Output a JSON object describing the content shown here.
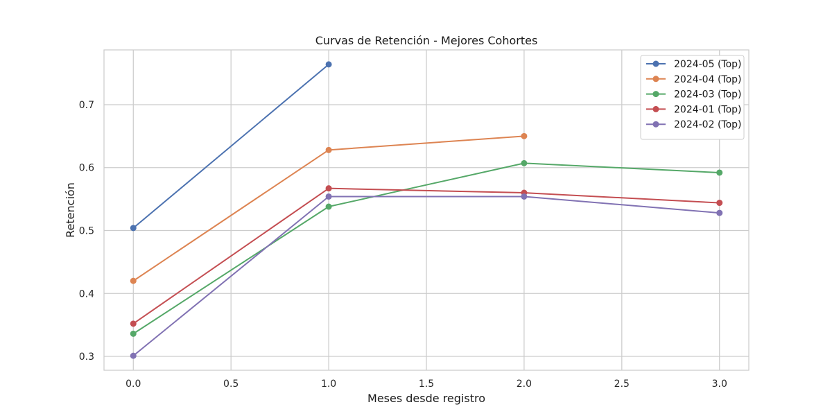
{
  "chart_data": {
    "type": "line",
    "title": "Curvas de Retención - Mejores Cohortes",
    "xlabel": "Meses desde registro",
    "ylabel": "Retención",
    "xlim": [
      -0.15,
      3.15
    ],
    "ylim": [
      0.278,
      0.787
    ],
    "xticks": [
      "0.0",
      "0.5",
      "1.0",
      "1.5",
      "2.0",
      "2.5",
      "3.0"
    ],
    "yticks": [
      "0.3",
      "0.4",
      "0.5",
      "0.6",
      "0.7"
    ],
    "grid": true,
    "legend_position": "top-right",
    "series": [
      {
        "name": "2024-05 (Top)",
        "color": "#4c72b0",
        "x": [
          0,
          1
        ],
        "values": [
          0.504,
          0.764
        ]
      },
      {
        "name": "2024-04 (Top)",
        "color": "#dd8452",
        "x": [
          0,
          1,
          2
        ],
        "values": [
          0.42,
          0.628,
          0.65
        ]
      },
      {
        "name": "2024-03 (Top)",
        "color": "#55a868",
        "x": [
          0,
          1,
          2,
          3
        ],
        "values": [
          0.336,
          0.538,
          0.607,
          0.592
        ]
      },
      {
        "name": "2024-01 (Top)",
        "color": "#c44e52",
        "x": [
          0,
          1,
          2,
          3
        ],
        "values": [
          0.352,
          0.567,
          0.56,
          0.544
        ]
      },
      {
        "name": "2024-02 (Top)",
        "color": "#8172b3",
        "x": [
          0,
          1,
          2,
          3
        ],
        "values": [
          0.301,
          0.554,
          0.554,
          0.528
        ]
      }
    ]
  }
}
